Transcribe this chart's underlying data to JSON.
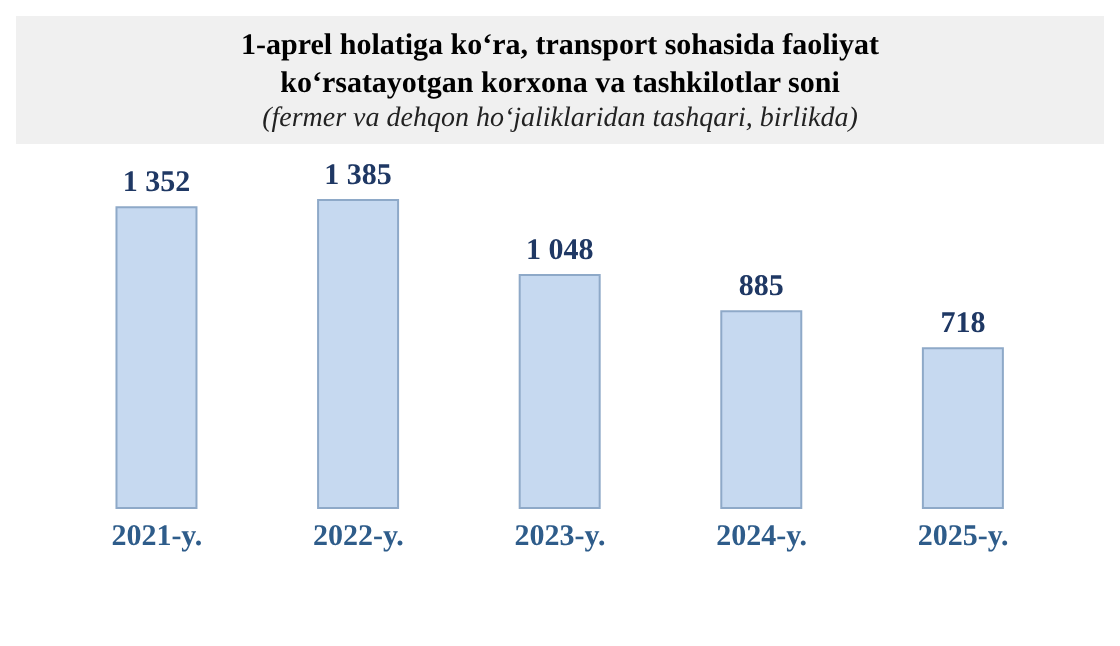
{
  "chart_data": {
    "type": "bar",
    "title": "1-aprel holatiga ko‘ra, transport sohasida faoliyat ko‘rsatayotgan korxona va tashkilotlar soni",
    "subtitle": "(fermer va dehqon ho‘jaliklaridan tashqari, birlikda)",
    "categories": [
      "2021-y.",
      "2022-y.",
      "2023-y.",
      "2024-y.",
      "2025-y."
    ],
    "values": [
      1352,
      1385,
      1048,
      885,
      718
    ],
    "value_labels": [
      "1 352",
      "1 385",
      "1 048",
      "885",
      "718"
    ],
    "color": "#c6d9f0"
  }
}
